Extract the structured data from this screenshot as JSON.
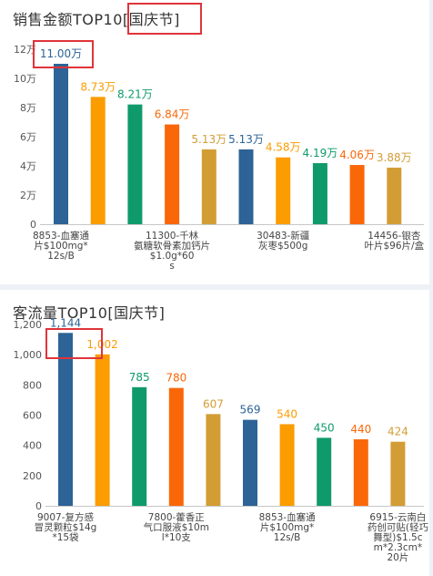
{
  "sales_panel": {
    "title": "销售金额TOP10",
    "tag": "[国庆节]"
  },
  "traffic_panel": {
    "title": "客流量TOP10",
    "tag": "[国庆节]"
  },
  "colors": {
    "blue": "#2d6396",
    "orange": "#fb9c00",
    "green": "#0f9a6b",
    "red_orange": "#fa6709",
    "gold": "#d39d35",
    "highlight_box": "#e0343a"
  },
  "chart_data": [
    {
      "type": "bar",
      "title": "销售金额TOP10[国庆节]",
      "categories": [
        "",
        "",
        "",
        "",
        "",
        "",
        "",
        "",
        "",
        ""
      ],
      "values": [
        11.0,
        8.73,
        8.21,
        6.84,
        5.13,
        5.13,
        4.58,
        4.19,
        4.06,
        3.88
      ],
      "value_labels": [
        "11.00万",
        "8.73万",
        "8.21万",
        "6.84万",
        "5.13万",
        "5.13万",
        "4.58万",
        "4.19万",
        "4.06万",
        "3.88万"
      ],
      "bar_colors": [
        "#2d6396",
        "#fb9c00",
        "#0f9a6b",
        "#fa6709",
        "#d39d35",
        "#2d6396",
        "#fb9c00",
        "#0f9a6b",
        "#fa6709",
        "#d39d35"
      ],
      "category_labels": [
        {
          "index": 0,
          "lines": [
            "8853-血塞通",
            "片$100mg*",
            "12s/B"
          ]
        },
        {
          "index": 3,
          "lines": [
            "11300-千林",
            "氨糖软骨素加钙片",
            "$1.0g*60",
            "s"
          ]
        },
        {
          "index": 6,
          "lines": [
            "30483-新疆",
            "灰枣$500g"
          ]
        },
        {
          "index": 9,
          "lines": [
            "14456-银杏",
            "叶片$96片/盒"
          ]
        }
      ],
      "y_ticks": [
        "0",
        "2万",
        "4万",
        "6万",
        "8万",
        "10万",
        "12万"
      ],
      "y_tick_values": [
        0,
        2,
        4,
        6,
        8,
        10,
        12
      ],
      "ylim": [
        0,
        12
      ],
      "unit": "万",
      "grid": false
    },
    {
      "type": "bar",
      "title": "客流量TOP10[国庆节]",
      "categories": [
        "",
        "",
        "",
        "",
        "",
        "",
        "",
        "",
        "",
        ""
      ],
      "values": [
        1144,
        1002,
        785,
        780,
        607,
        569,
        540,
        450,
        440,
        424
      ],
      "value_labels": [
        "1,144",
        "1,002",
        "785",
        "780",
        "607",
        "569",
        "540",
        "450",
        "440",
        "424"
      ],
      "bar_colors": [
        "#2d6396",
        "#fb9c00",
        "#0f9a6b",
        "#fa6709",
        "#d39d35",
        "#2d6396",
        "#fb9c00",
        "#0f9a6b",
        "#fa6709",
        "#d39d35"
      ],
      "category_labels": [
        {
          "index": 0,
          "lines": [
            "9007-复方感",
            "冒灵颗粒$14g",
            "*15袋"
          ]
        },
        {
          "index": 3,
          "lines": [
            "7800-藿香正",
            "气口服液$10m",
            "l*10支"
          ]
        },
        {
          "index": 6,
          "lines": [
            "8853-血塞通",
            "片$100mg*",
            "12s/B"
          ]
        },
        {
          "index": 9,
          "lines": [
            "6915-云南白",
            "药创可贴(轻巧",
            "舞型)$1.5c",
            "m*2.3cm*",
            "20片"
          ]
        }
      ],
      "y_ticks": [
        "0",
        "200",
        "400",
        "600",
        "800",
        "1,000",
        "1,200"
      ],
      "y_tick_values": [
        0,
        200,
        400,
        600,
        800,
        1000,
        1200
      ],
      "ylim": [
        0,
        1200
      ],
      "grid": false
    }
  ]
}
